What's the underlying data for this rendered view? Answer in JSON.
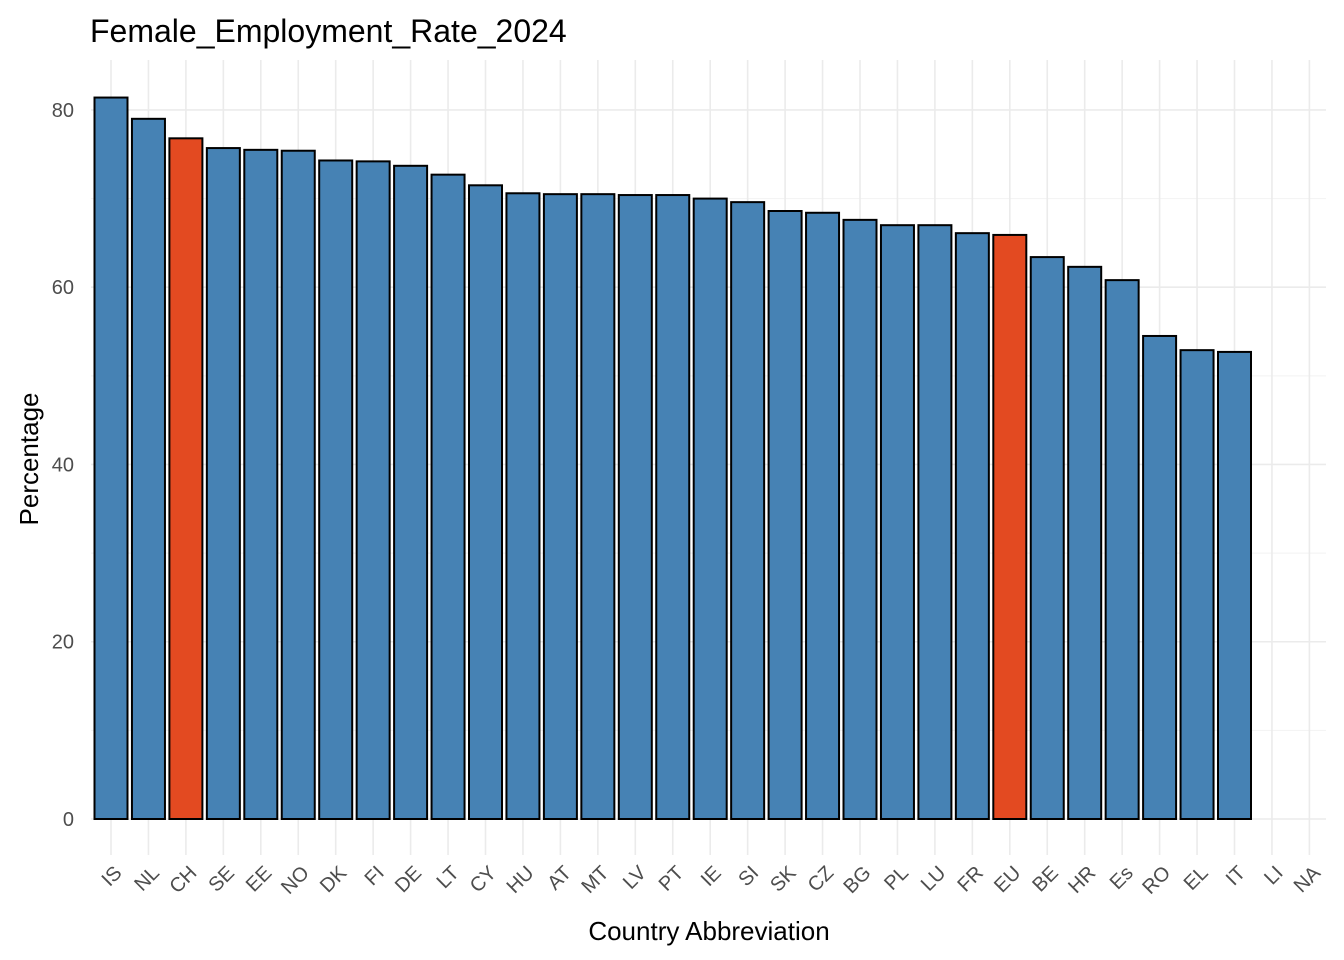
{
  "chart_data": {
    "type": "bar",
    "title": "Female_Employment_Rate_2024",
    "xlabel": "Country Abbreviation",
    "ylabel": "Percentage",
    "categories": [
      "IS",
      "NL",
      "CH",
      "SE",
      "EE",
      "NO",
      "DK",
      "FI",
      "DE",
      "LT",
      "CY",
      "HU",
      "AT",
      "MT",
      "LV",
      "PT",
      "IE",
      "SI",
      "SK",
      "CZ",
      "BG",
      "PL",
      "LU",
      "FR",
      "EU",
      "BE",
      "HR",
      "Es",
      "RO",
      "EL",
      "IT",
      "LI",
      "NA"
    ],
    "values": [
      81.4,
      79.0,
      76.8,
      75.7,
      75.5,
      75.4,
      74.3,
      74.2,
      73.7,
      72.7,
      71.5,
      70.6,
      70.5,
      70.5,
      70.4,
      70.4,
      70.0,
      69.6,
      68.6,
      68.4,
      67.6,
      67.0,
      67.0,
      66.1,
      65.9,
      63.4,
      62.3,
      60.8,
      54.5,
      52.9,
      52.7,
      null,
      null
    ],
    "highlight_categories": [
      "CH",
      "EU"
    ],
    "ylim": [
      0,
      85
    ],
    "y_ticks": [
      0,
      20,
      40,
      60,
      80
    ],
    "grid": true,
    "colors": {
      "default": "#4682b4",
      "highlight": "#e34a21",
      "outline": "#000000"
    }
  }
}
